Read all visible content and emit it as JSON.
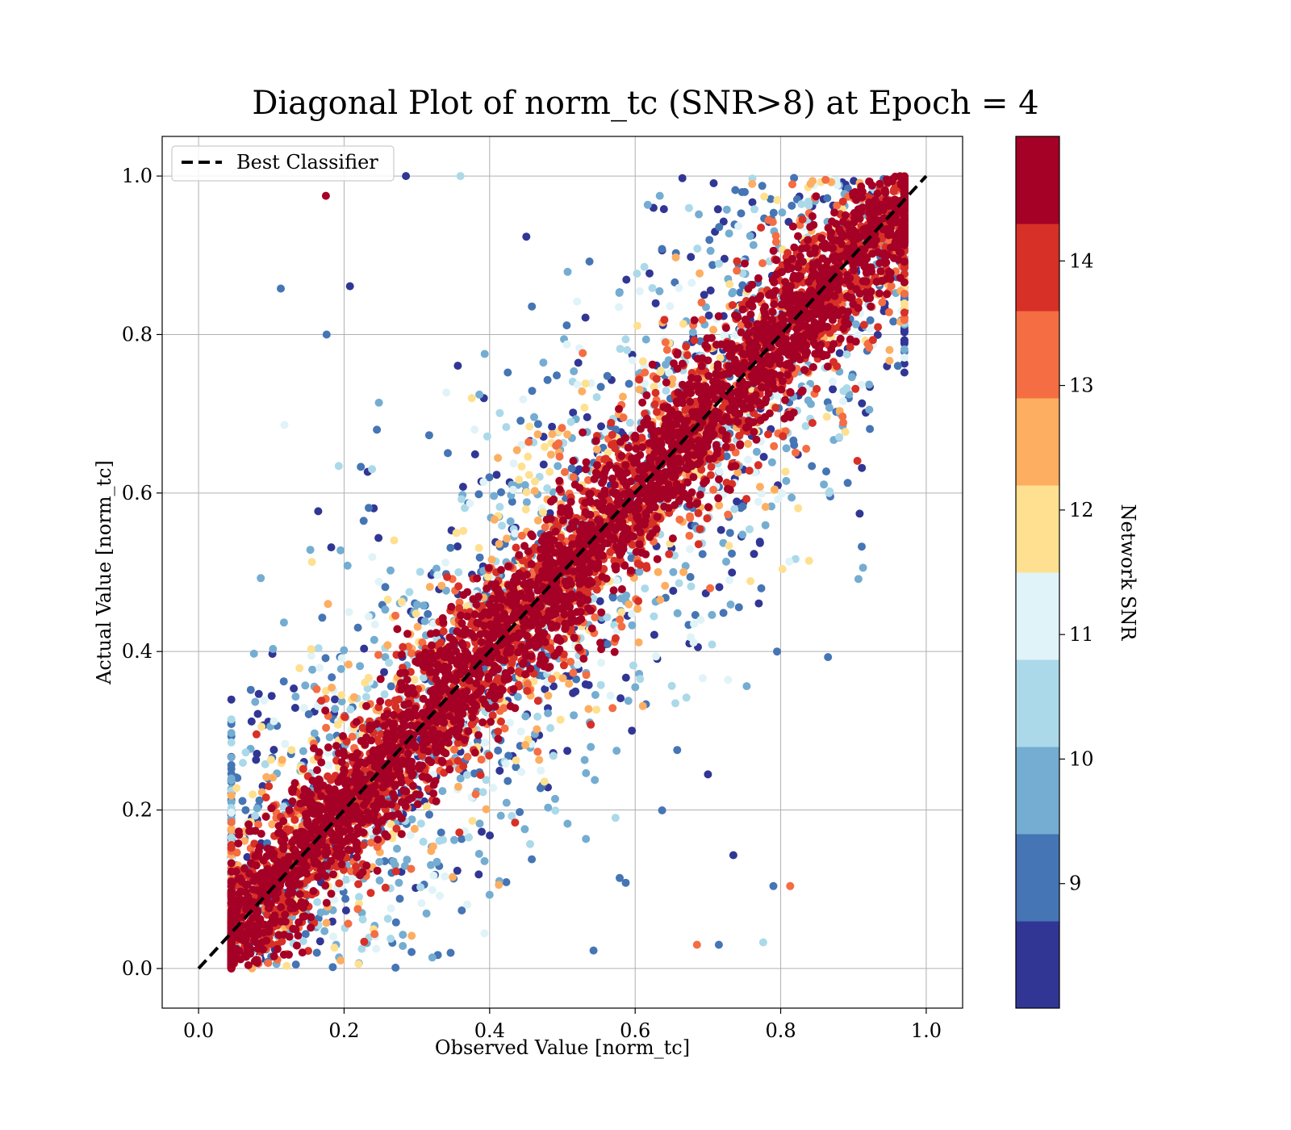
{
  "chart_data": {
    "type": "scatter",
    "title": "Diagonal Plot of norm_tc (SNR>8) at Epoch = 4",
    "xlabel": "Observed Value [norm_tc]",
    "ylabel": "Actual Value [norm_tc]",
    "xlim": [
      -0.05,
      1.05
    ],
    "ylim": [
      -0.05,
      1.05
    ],
    "xticks": [
      0.0,
      0.2,
      0.4,
      0.6,
      0.8,
      1.0
    ],
    "yticks": [
      0.0,
      0.2,
      0.4,
      0.6,
      0.8,
      1.0
    ],
    "xtick_labels": [
      "0.0",
      "0.2",
      "0.4",
      "0.6",
      "0.8",
      "1.0"
    ],
    "ytick_labels": [
      "0.0",
      "0.2",
      "0.4",
      "0.6",
      "0.8",
      "1.0"
    ],
    "grid": true,
    "legend": {
      "position": "top-left",
      "entries": [
        {
          "label": "Best Classifier",
          "style": "dashed",
          "color": "#000000"
        }
      ]
    },
    "reference_line": {
      "name": "Best Classifier",
      "x": [
        0.0,
        1.0
      ],
      "y": [
        0.0,
        1.0
      ]
    },
    "colorbar": {
      "label": "Network SNR",
      "range": [
        8,
        15
      ],
      "ticks": [
        9,
        10,
        11,
        12,
        13,
        14
      ],
      "tick_labels": [
        "9",
        "10",
        "11",
        "12",
        "13",
        "14"
      ],
      "colors": [
        "#313695",
        "#4575b4",
        "#74add1",
        "#abd9e9",
        "#e0f3f8",
        "#fee090",
        "#fdae61",
        "#f46d43",
        "#d73027",
        "#a50026"
      ]
    },
    "approx_point_count": 20000,
    "outlier_points": [
      {
        "x": 0.175,
        "y": 0.975,
        "snr": 14.9
      },
      {
        "x": 0.285,
        "y": 1.0,
        "snr": 8.2
      },
      {
        "x": 0.36,
        "y": 1.0,
        "snr": 10.5
      },
      {
        "x": 0.113,
        "y": 0.858,
        "snr": 9.0
      },
      {
        "x": 0.176,
        "y": 0.8,
        "snr": 9.0
      },
      {
        "x": 0.208,
        "y": 0.861,
        "snr": 8.2
      },
      {
        "x": 0.118,
        "y": 0.686,
        "snr": 11.2
      },
      {
        "x": 0.795,
        "y": 0.4,
        "snr": 9.0
      },
      {
        "x": 0.865,
        "y": 0.393,
        "snr": 9.0
      },
      {
        "x": 0.79,
        "y": 0.104,
        "snr": 9.0
      },
      {
        "x": 0.813,
        "y": 0.104,
        "snr": 13.2
      },
      {
        "x": 0.776,
        "y": 0.033,
        "snr": 10.6
      },
      {
        "x": 0.735,
        "y": 0.143,
        "snr": 8.2
      },
      {
        "x": 0.715,
        "y": 0.03,
        "snr": 9.0
      },
      {
        "x": 0.685,
        "y": 0.03,
        "snr": 13.2
      },
      {
        "x": 0.7,
        "y": 0.245,
        "snr": 8.2
      }
    ]
  }
}
